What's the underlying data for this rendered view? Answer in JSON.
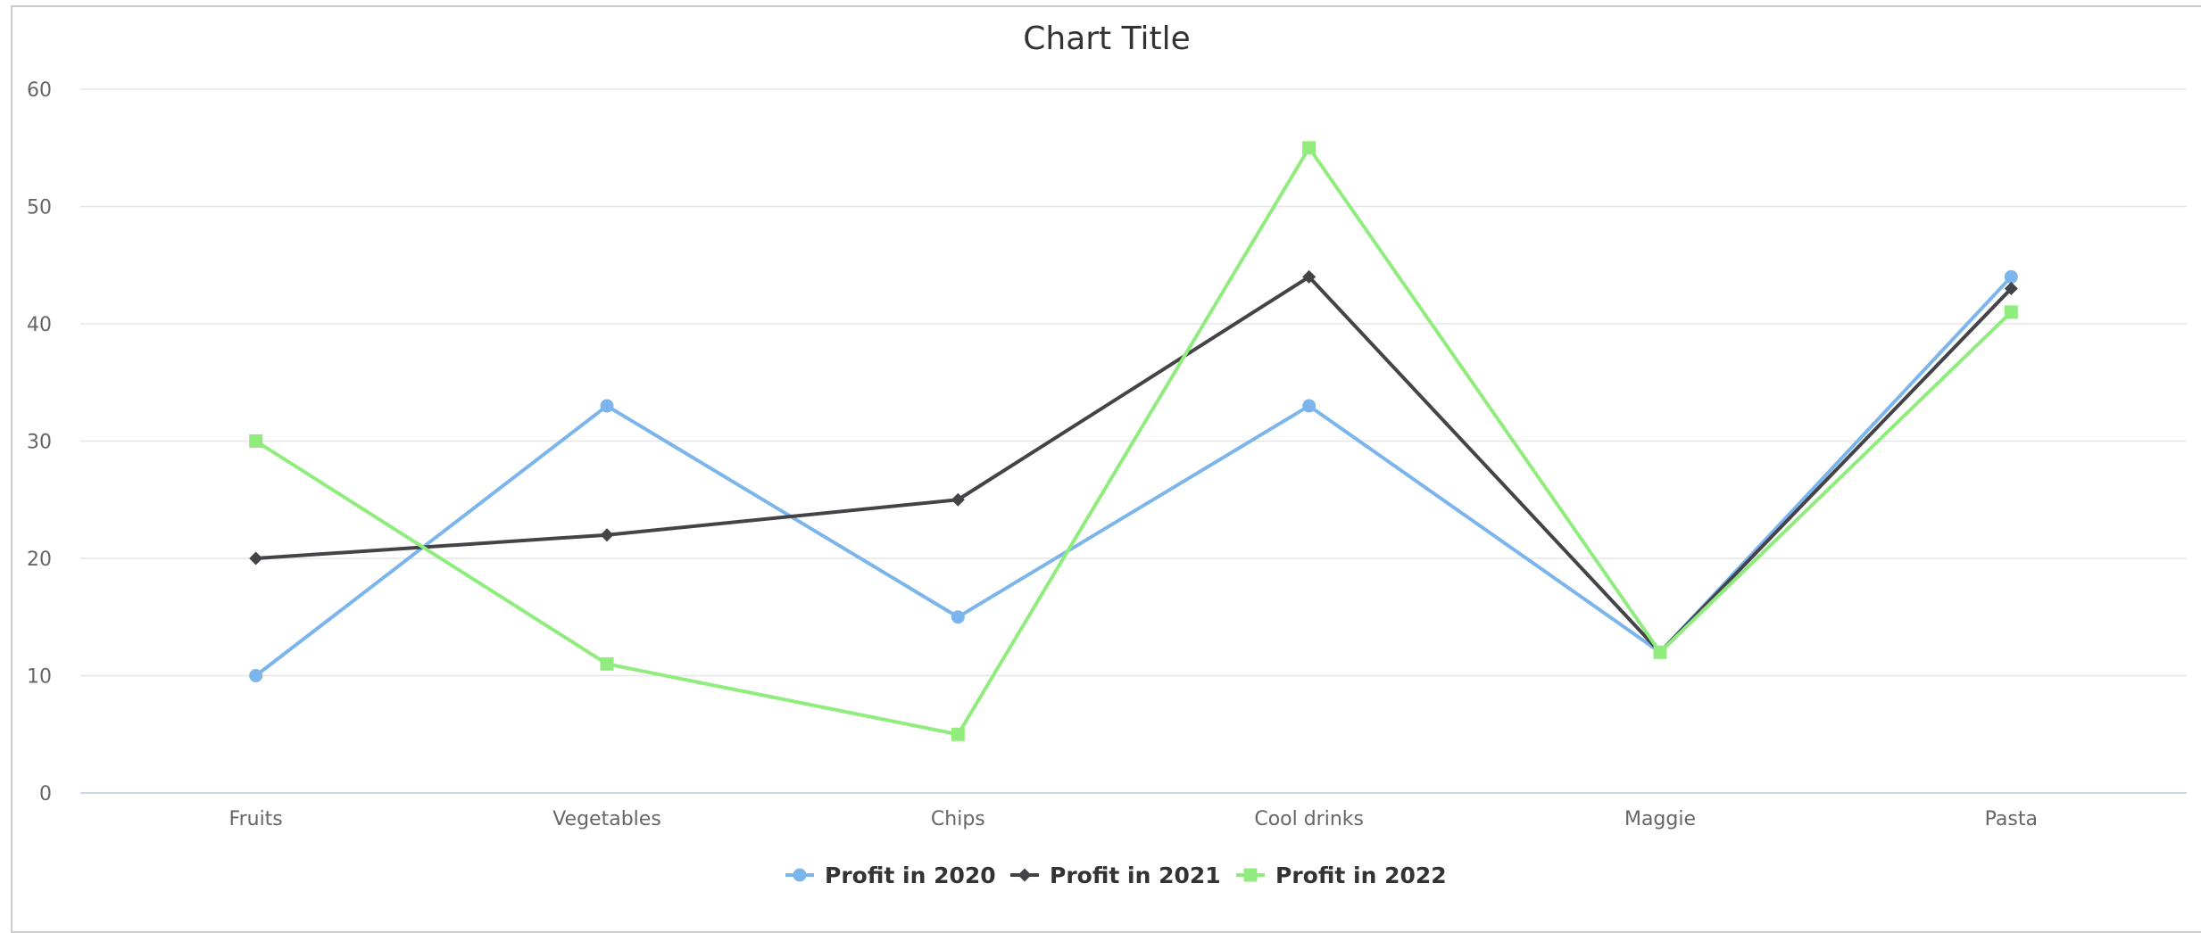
{
  "chart_data": {
    "type": "line",
    "title": "Chart Title",
    "xlabel": "",
    "ylabel": "",
    "categories": [
      "Fruits",
      "Vegetables",
      "Chips",
      "Cool drinks",
      "Maggie",
      "Pasta"
    ],
    "ylim": [
      0,
      60
    ],
    "yticks": [
      0,
      10,
      20,
      30,
      40,
      50,
      60
    ],
    "grid": true,
    "legend_position": "bottom-center",
    "series": [
      {
        "name": "Profit in 2020",
        "values": [
          10,
          33,
          15,
          33,
          12,
          44
        ],
        "color": "#7cb5ec",
        "marker": "circle"
      },
      {
        "name": "Profit in 2021",
        "values": [
          20,
          22,
          25,
          44,
          12,
          43
        ],
        "color": "#434348",
        "marker": "diamond"
      },
      {
        "name": "Profit in 2022",
        "values": [
          30,
          11,
          5,
          55,
          12,
          41
        ],
        "color": "#90ed7d",
        "marker": "square"
      }
    ]
  }
}
